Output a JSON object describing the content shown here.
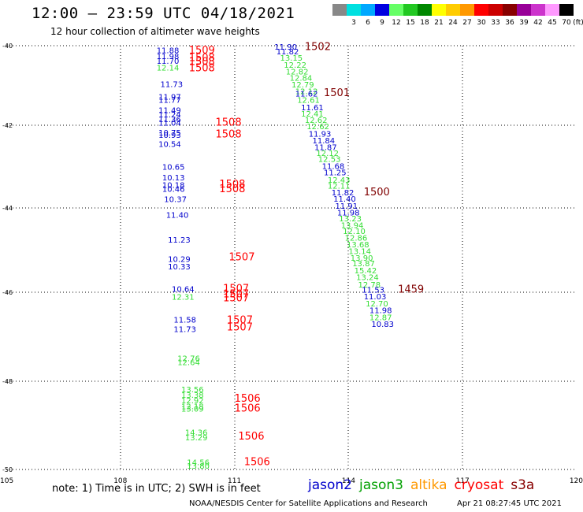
{
  "header": {
    "title": "12:00 – 23:59 UTC 04/18/2021",
    "subtitle": "12 hour collection of altimeter wave heights"
  },
  "colorbar": {
    "unit_label": "(ft)",
    "bins": [
      {
        "label": "",
        "color": "#888888"
      },
      {
        "label": "3",
        "color": "#00e0e0"
      },
      {
        "label": "6",
        "color": "#00a8ff"
      },
      {
        "label": "9",
        "color": "#0000e0"
      },
      {
        "label": "12",
        "color": "#66ff66"
      },
      {
        "label": "15",
        "color": "#22c822"
      },
      {
        "label": "18",
        "color": "#008800"
      },
      {
        "label": "21",
        "color": "#ffff00"
      },
      {
        "label": "24",
        "color": "#ffcc00"
      },
      {
        "label": "27",
        "color": "#ff9900"
      },
      {
        "label": "30",
        "color": "#ff0000"
      },
      {
        "label": "33",
        "color": "#cc0000"
      },
      {
        "label": "36",
        "color": "#880000"
      },
      {
        "label": "39",
        "color": "#990099"
      },
      {
        "label": "42",
        "color": "#cc33cc"
      },
      {
        "label": "45",
        "color": "#ff99ff"
      },
      {
        "label": "70",
        "color": "#000000"
      }
    ]
  },
  "footer": {
    "note": "note: 1) Time is in UTC; 2) SWH is in feet",
    "credit": "NOAA/NESDIS Center for Satellite Applications and Research",
    "timestamp": "Apr 21 08:27:45 UTC 2021",
    "legend": [
      {
        "name": "jason2",
        "color": "#0000cc"
      },
      {
        "name": "jason3",
        "color": "#00a000"
      },
      {
        "name": "altika",
        "color": "#ff9900"
      },
      {
        "name": "cryosat",
        "color": "#ff0000"
      },
      {
        "name": "s3a",
        "color": "#880000"
      }
    ]
  },
  "chart_data": {
    "type": "scatter",
    "title": "12:00 – 23:59 UTC 04/18/2021",
    "subtitle": "12 hour collection of altimeter wave heights",
    "xlabel": "",
    "ylabel": "",
    "xlim": [
      105,
      120
    ],
    "ylim": [
      -50,
      -40
    ],
    "y_grid_ticks": [
      -40,
      -42,
      -44,
      -46,
      -48,
      -50
    ],
    "y_tick_labels": [
      "-40",
      "-42",
      "-44",
      "-46",
      "-48",
      "-50"
    ],
    "x_ticks": [
      105,
      108,
      111,
      114,
      117,
      120
    ],
    "x_tick_labels": [
      "105",
      "108",
      "111",
      "114",
      "117",
      "120"
    ],
    "grid": true,
    "colors": {
      "blue": "#0000cc",
      "green": "#33dd33",
      "red": "#ff0000",
      "darkred": "#800000"
    },
    "points": [
      {
        "x": 108.95,
        "y": -40.11,
        "label": "11.88",
        "color": "blue"
      },
      {
        "x": 108.95,
        "y": -40.26,
        "label": "11.98",
        "color": "blue"
      },
      {
        "x": 108.95,
        "y": -40.38,
        "label": "11.70",
        "color": "blue"
      },
      {
        "x": 108.95,
        "y": -40.54,
        "label": "12.14",
        "color": "green"
      },
      {
        "x": 109.8,
        "y": -40.12,
        "label": "1509",
        "color": "red"
      },
      {
        "x": 109.8,
        "y": -40.31,
        "label": "1508",
        "color": "red"
      },
      {
        "x": 109.8,
        "y": -40.41,
        "label": "1508",
        "color": "red"
      },
      {
        "x": 109.8,
        "y": -40.56,
        "label": "1508",
        "color": "red"
      },
      {
        "x": 109.05,
        "y": -40.96,
        "label": "11.73",
        "color": "blue"
      },
      {
        "x": 109.0,
        "y": -41.28,
        "label": "11.97",
        "color": "blue"
      },
      {
        "x": 109.0,
        "y": -41.36,
        "label": "11.77",
        "color": "blue"
      },
      {
        "x": 109.0,
        "y": -41.61,
        "label": "11.49",
        "color": "blue"
      },
      {
        "x": 109.0,
        "y": -41.72,
        "label": "11.24",
        "color": "blue"
      },
      {
        "x": 109.0,
        "y": -41.84,
        "label": "11.36",
        "color": "blue"
      },
      {
        "x": 109.0,
        "y": -41.93,
        "label": "11.04",
        "color": "blue"
      },
      {
        "x": 110.5,
        "y": -41.93,
        "label": "1508",
        "color": "red"
      },
      {
        "x": 109.0,
        "y": -42.17,
        "label": "10.75",
        "color": "blue"
      },
      {
        "x": 109.0,
        "y": -42.23,
        "label": "10.93",
        "color": "blue"
      },
      {
        "x": 110.5,
        "y": -42.22,
        "label": "1508",
        "color": "red"
      },
      {
        "x": 109.0,
        "y": -42.45,
        "label": "10.54",
        "color": "blue"
      },
      {
        "x": 109.1,
        "y": -43.0,
        "label": "10.65",
        "color": "blue"
      },
      {
        "x": 109.1,
        "y": -43.26,
        "label": "10.13",
        "color": "blue"
      },
      {
        "x": 109.1,
        "y": -43.44,
        "label": "10.18",
        "color": "blue"
      },
      {
        "x": 109.1,
        "y": -43.53,
        "label": "10.46",
        "color": "blue"
      },
      {
        "x": 110.6,
        "y": -43.43,
        "label": "1508",
        "color": "red"
      },
      {
        "x": 110.6,
        "y": -43.54,
        "label": "1508",
        "color": "red"
      },
      {
        "x": 109.15,
        "y": -43.78,
        "label": "10.37",
        "color": "blue"
      },
      {
        "x": 109.2,
        "y": -44.16,
        "label": "11.40",
        "color": "blue"
      },
      {
        "x": 109.25,
        "y": -44.75,
        "label": "11.23",
        "color": "blue"
      },
      {
        "x": 109.25,
        "y": -45.21,
        "label": "10.29",
        "color": "blue"
      },
      {
        "x": 109.25,
        "y": -45.38,
        "label": "10.33",
        "color": "blue"
      },
      {
        "x": 110.85,
        "y": -45.17,
        "label": "1507",
        "color": "red"
      },
      {
        "x": 109.35,
        "y": -45.92,
        "label": "10.64",
        "color": "blue"
      },
      {
        "x": 109.35,
        "y": -46.1,
        "label": "12.31",
        "color": "green"
      },
      {
        "x": 110.7,
        "y": -45.92,
        "label": "1507",
        "color": "red"
      },
      {
        "x": 110.7,
        "y": -46.04,
        "label": "1507",
        "color": "red"
      },
      {
        "x": 110.7,
        "y": -46.13,
        "label": "1507",
        "color": "red"
      },
      {
        "x": 109.4,
        "y": -46.61,
        "label": "11.58",
        "color": "blue"
      },
      {
        "x": 109.4,
        "y": -46.82,
        "label": "11.73",
        "color": "blue"
      },
      {
        "x": 110.8,
        "y": -46.63,
        "label": "1507",
        "color": "red"
      },
      {
        "x": 110.8,
        "y": -46.79,
        "label": "1507",
        "color": "red"
      },
      {
        "x": 109.5,
        "y": -47.48,
        "label": "12.76",
        "color": "green"
      },
      {
        "x": 109.5,
        "y": -47.57,
        "label": "12.64",
        "color": "green"
      },
      {
        "x": 109.6,
        "y": -48.18,
        "label": "13.56",
        "color": "green"
      },
      {
        "x": 109.6,
        "y": -48.3,
        "label": "13.38",
        "color": "green"
      },
      {
        "x": 109.6,
        "y": -48.43,
        "label": "12.92",
        "color": "green"
      },
      {
        "x": 109.6,
        "y": -48.56,
        "label": "12.18",
        "color": "green"
      },
      {
        "x": 109.6,
        "y": -48.62,
        "label": "13.09",
        "color": "green"
      },
      {
        "x": 111.0,
        "y": -48.39,
        "label": "1506",
        "color": "red"
      },
      {
        "x": 111.0,
        "y": -48.62,
        "label": "1506",
        "color": "red"
      },
      {
        "x": 109.7,
        "y": -49.15,
        "label": "14.36",
        "color": "green"
      },
      {
        "x": 109.7,
        "y": -49.27,
        "label": "13.29",
        "color": "green"
      },
      {
        "x": 111.1,
        "y": -49.25,
        "label": "1506",
        "color": "red"
      },
      {
        "x": 109.75,
        "y": -49.83,
        "label": "14.56",
        "color": "green"
      },
      {
        "x": 109.75,
        "y": -49.91,
        "label": "13.80",
        "color": "green"
      },
      {
        "x": 111.25,
        "y": -49.83,
        "label": "1506",
        "color": "red"
      },
      {
        "x": 112.05,
        "y": -40.02,
        "label": "11.90",
        "color": "blue"
      },
      {
        "x": 112.85,
        "y": -40.03,
        "label": "1502",
        "color": "darkred"
      },
      {
        "x": 112.1,
        "y": -40.14,
        "label": "11.82",
        "color": "blue"
      },
      {
        "x": 112.2,
        "y": -40.3,
        "label": "13.15",
        "color": "green"
      },
      {
        "x": 112.3,
        "y": -40.48,
        "label": "12.22",
        "color": "green"
      },
      {
        "x": 112.35,
        "y": -40.64,
        "label": "12.82",
        "color": "green"
      },
      {
        "x": 112.45,
        "y": -40.8,
        "label": "12.84",
        "color": "green"
      },
      {
        "x": 112.5,
        "y": -40.97,
        "label": "12.79",
        "color": "green"
      },
      {
        "x": 112.6,
        "y": -41.14,
        "label": "12.12",
        "color": "green"
      },
      {
        "x": 112.6,
        "y": -41.2,
        "label": "11.62",
        "color": "blue"
      },
      {
        "x": 113.35,
        "y": -41.19,
        "label": "1501",
        "color": "darkred"
      },
      {
        "x": 112.65,
        "y": -41.36,
        "label": "12.61",
        "color": "green"
      },
      {
        "x": 112.75,
        "y": -41.54,
        "label": "11.61",
        "color": "blue"
      },
      {
        "x": 112.75,
        "y": -41.7,
        "label": "12.41",
        "color": "green"
      },
      {
        "x": 112.85,
        "y": -41.86,
        "label": "12.62",
        "color": "green"
      },
      {
        "x": 112.9,
        "y": -42.02,
        "label": "12.62",
        "color": "green"
      },
      {
        "x": 112.95,
        "y": -42.2,
        "label": "11.93",
        "color": "blue"
      },
      {
        "x": 113.05,
        "y": -42.36,
        "label": "11.84",
        "color": "blue"
      },
      {
        "x": 113.1,
        "y": -42.52,
        "label": "11.87",
        "color": "blue"
      },
      {
        "x": 113.15,
        "y": -42.67,
        "label": "12.12",
        "color": "green"
      },
      {
        "x": 113.2,
        "y": -42.81,
        "label": "12.53",
        "color": "green"
      },
      {
        "x": 113.3,
        "y": -42.98,
        "label": "11.68",
        "color": "blue"
      },
      {
        "x": 113.35,
        "y": -43.13,
        "label": "11.25",
        "color": "blue"
      },
      {
        "x": 113.45,
        "y": -43.31,
        "label": "12.43",
        "color": "green"
      },
      {
        "x": 113.45,
        "y": -43.46,
        "label": "12.11",
        "color": "green"
      },
      {
        "x": 113.55,
        "y": -43.62,
        "label": "11.82",
        "color": "blue"
      },
      {
        "x": 114.4,
        "y": -43.62,
        "label": "1500",
        "color": "darkred"
      },
      {
        "x": 113.6,
        "y": -43.77,
        "label": "11.40",
        "color": "blue"
      },
      {
        "x": 113.65,
        "y": -43.94,
        "label": "11.91",
        "color": "blue"
      },
      {
        "x": 113.7,
        "y": -44.1,
        "label": "11.98",
        "color": "blue"
      },
      {
        "x": 113.75,
        "y": -44.24,
        "label": "13.23",
        "color": "green"
      },
      {
        "x": 113.8,
        "y": -44.4,
        "label": "13.94",
        "color": "green"
      },
      {
        "x": 113.85,
        "y": -44.54,
        "label": "12.10",
        "color": "green"
      },
      {
        "x": 113.9,
        "y": -44.7,
        "label": "12.86",
        "color": "green"
      },
      {
        "x": 113.95,
        "y": -44.86,
        "label": "13.68",
        "color": "green"
      },
      {
        "x": 114.0,
        "y": -45.02,
        "label": "13.14",
        "color": "green"
      },
      {
        "x": 114.05,
        "y": -45.18,
        "label": "13.90",
        "color": "green"
      },
      {
        "x": 114.1,
        "y": -45.31,
        "label": "13.87",
        "color": "green"
      },
      {
        "x": 114.15,
        "y": -45.48,
        "label": "15.42",
        "color": "green"
      },
      {
        "x": 114.2,
        "y": -45.64,
        "label": "13.24",
        "color": "green"
      },
      {
        "x": 114.25,
        "y": -45.81,
        "label": "12.78",
        "color": "green"
      },
      {
        "x": 114.35,
        "y": -45.93,
        "label": "11.53",
        "color": "blue"
      },
      {
        "x": 115.3,
        "y": -45.93,
        "label": "1459",
        "color": "darkred"
      },
      {
        "x": 114.4,
        "y": -46.09,
        "label": "11.03",
        "color": "blue"
      },
      {
        "x": 114.45,
        "y": -46.25,
        "label": "12.70",
        "color": "green"
      },
      {
        "x": 114.55,
        "y": -46.4,
        "label": "11.98",
        "color": "blue"
      },
      {
        "x": 114.55,
        "y": -46.56,
        "label": "12.87",
        "color": "green"
      },
      {
        "x": 114.6,
        "y": -46.71,
        "label": "10.83",
        "color": "blue"
      }
    ]
  }
}
